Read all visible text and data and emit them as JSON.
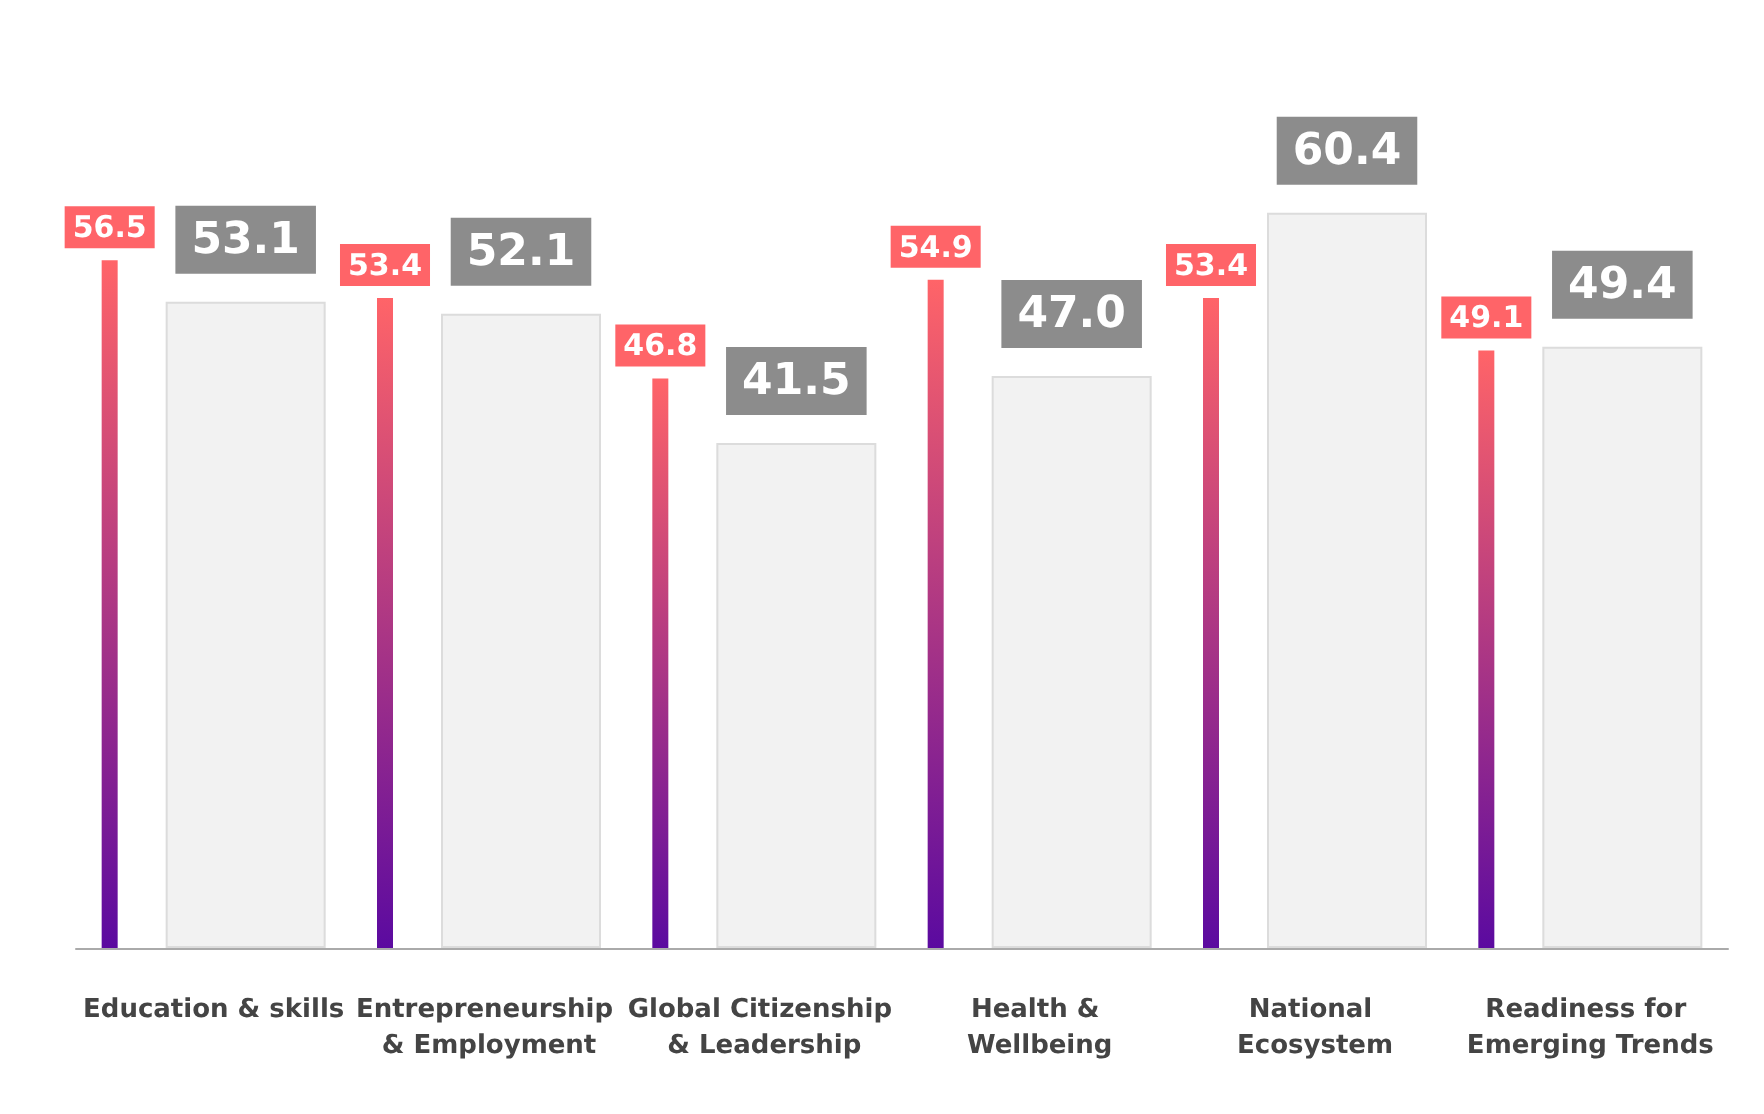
{
  "chart_data": {
    "type": "bar",
    "categories": [
      "Education & skills",
      "Entrepreneurship & Employment",
      "Global Citizenship & Leadership",
      "Health & Wellbeing",
      "National Ecosystem",
      "Readiness for Emerging Trends"
    ],
    "series": [
      {
        "color": "#ff6468",
        "values": [
          56.5,
          53.4,
          46.8,
          54.9,
          53.4,
          49.1
        ]
      },
      {
        "color": "#f2f2f2",
        "values": [
          53.1,
          52.1,
          41.5,
          47.0,
          60.4,
          49.4
        ],
        "value_labels": [
          "53.1",
          "52.1",
          "41.5",
          "47.0",
          "60.4",
          "49.4"
        ]
      }
    ],
    "data_labels": true,
    "grid": false
  }
}
